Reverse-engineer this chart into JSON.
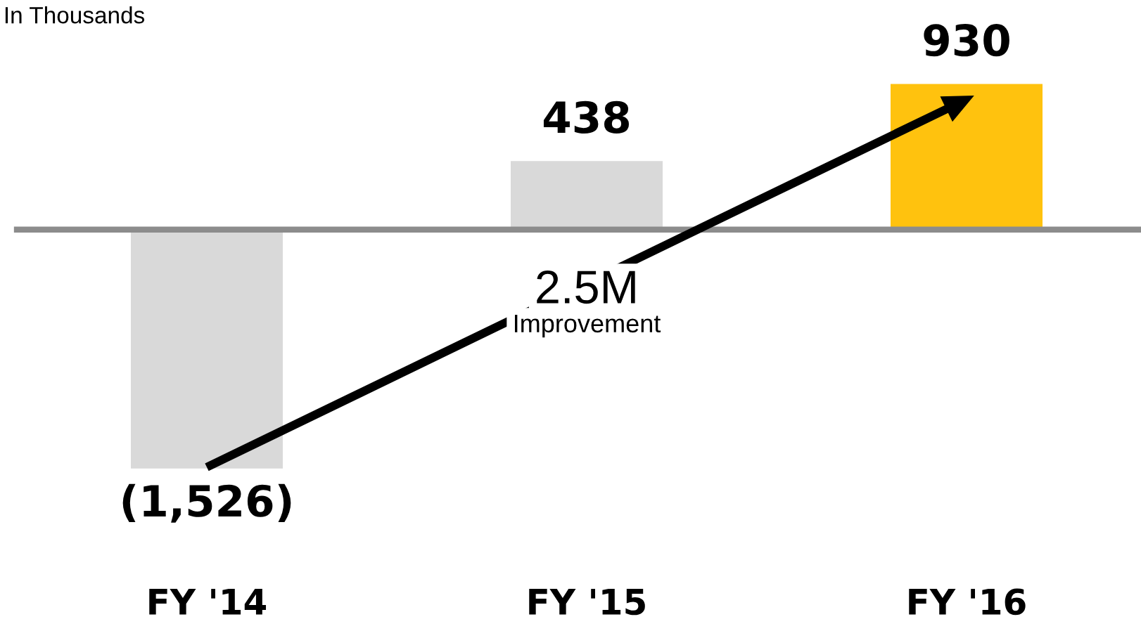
{
  "chart_data": {
    "type": "bar",
    "subtitle": "In Thousands",
    "categories": [
      "FY '14",
      "FY '15",
      "FY '16"
    ],
    "values": [
      -1526,
      438,
      930
    ],
    "colors": [
      "#d9d9d9",
      "#d9d9d9",
      "#ffc20e"
    ],
    "value_labels": [
      "(1,526)",
      "438",
      "930"
    ],
    "annotations": [
      "2.5M",
      "Improvement"
    ],
    "ref_lines": [
      {
        "axis": "y",
        "value": 0,
        "color": "#8c8c8c"
      }
    ],
    "grid": false,
    "legend": false
  }
}
